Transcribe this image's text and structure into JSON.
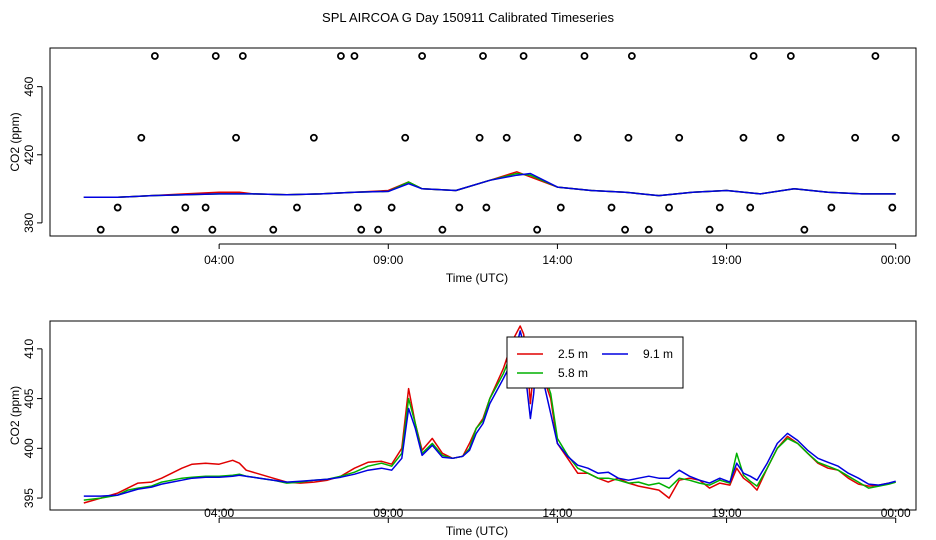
{
  "title": "SPL AIRCOA G  Day 150911  Calibrated Timeseries",
  "colors": {
    "s1": "#e00000",
    "s2": "#00b000",
    "s3": "#0000e0",
    "axis": "#000000"
  },
  "chart_data": [
    {
      "type": "line",
      "title": "SPL AIRCOA G  Day 150911  Calibrated Timeseries",
      "xlabel": "Time (UTC)",
      "ylabel": "CO2 (ppm)",
      "xlim": [
        -1.0,
        24.6
      ],
      "ylim": [
        372.3,
        482.7
      ],
      "xticks": [
        {
          "value": 4,
          "label": "04:00"
        },
        {
          "value": 9,
          "label": "09:00"
        },
        {
          "value": 14,
          "label": "14:00"
        },
        {
          "value": 19,
          "label": "19:00"
        },
        {
          "value": 24,
          "label": "00:00"
        }
      ],
      "yticks": [
        {
          "value": 380,
          "label": "380"
        },
        {
          "value": 420,
          "label": "420"
        },
        {
          "value": 460,
          "label": "460"
        }
      ],
      "series": [
        {
          "name": "2.5 m",
          "color": "#e00000",
          "x": [
            0,
            1,
            2,
            3,
            4,
            4.6,
            5,
            6,
            7,
            8,
            9,
            9.6,
            10,
            11,
            12,
            12.8,
            13.2,
            14,
            15,
            16,
            17,
            18,
            19,
            20,
            21,
            22,
            23,
            24
          ],
          "values": [
            395,
            395,
            396,
            397,
            398,
            398,
            397,
            396.5,
            397,
            398,
            399,
            404,
            400,
            399,
            405,
            410,
            407,
            401,
            399,
            398,
            396,
            398,
            399,
            397,
            400,
            398,
            397,
            397
          ]
        },
        {
          "name": "5.8 m",
          "color": "#00b000",
          "x": [
            0,
            1,
            2,
            3,
            4,
            5,
            6,
            7,
            8,
            9,
            9.6,
            10,
            11,
            12,
            12.8,
            13.2,
            14,
            15,
            16,
            17,
            18,
            19,
            20,
            21,
            22,
            23,
            24
          ],
          "values": [
            395,
            395,
            396,
            396.5,
            397,
            397,
            396.5,
            397,
            398,
            398.5,
            404,
            400,
            399,
            405,
            409,
            408,
            401,
            399,
            398,
            396,
            398,
            399,
            397,
            400,
            398,
            397,
            397
          ]
        },
        {
          "name": "9.1 m",
          "color": "#0000e0",
          "x": [
            0,
            1,
            2,
            3,
            4,
            5,
            6,
            7,
            8,
            9,
            9.6,
            10,
            11,
            12,
            12.8,
            13.2,
            14,
            15,
            16,
            17,
            18,
            19,
            20,
            21,
            22,
            23,
            24
          ],
          "values": [
            395,
            395,
            396,
            396.5,
            397,
            397,
            396.5,
            397,
            398,
            398.5,
            403,
            400,
            399,
            405,
            408,
            409,
            401,
            399,
            398,
            396,
            398,
            399,
            397,
            400,
            398,
            397,
            397
          ]
        },
        {
          "name": "flags",
          "style": "points",
          "color": "#000000",
          "x": [
            0.5,
            1.0,
            1.7,
            2.1,
            2.7,
            3.0,
            3.6,
            3.8,
            3.9,
            4.5,
            4.7,
            5.6,
            6.3,
            6.8,
            7.6,
            8.0,
            8.1,
            8.2,
            8.7,
            9.1,
            9.5,
            10.0,
            10.6,
            11.1,
            11.7,
            11.8,
            11.9,
            12.5,
            13.0,
            13.4,
            14.1,
            14.6,
            14.8,
            15.6,
            16.0,
            16.1,
            16.2,
            16.7,
            17.3,
            17.6,
            18.5,
            18.8,
            19.5,
            19.7,
            19.8,
            20.6,
            20.9,
            21.3,
            22.1,
            22.8,
            23.4,
            23.9,
            24.0
          ],
          "values": [
            376,
            389,
            430,
            478,
            376,
            389,
            389,
            376,
            478,
            430,
            478,
            376,
            389,
            430,
            478,
            478,
            389,
            376,
            376,
            389,
            430,
            478,
            376,
            389,
            430,
            478,
            389,
            430,
            478,
            376,
            389,
            430,
            478,
            389,
            376,
            430,
            478,
            376,
            389,
            430,
            376,
            389,
            430,
            389,
            478,
            430,
            478,
            376,
            389,
            430,
            478,
            389,
            430
          ]
        }
      ]
    },
    {
      "type": "line",
      "title": "",
      "xlabel": "Time (UTC)",
      "ylabel": "CO2 (ppm)",
      "xlim": [
        -1.0,
        24.6
      ],
      "ylim": [
        393.8,
        412.8
      ],
      "legend": {
        "position": "top-center",
        "entries": [
          "2.5 m",
          "5.8 m",
          "9.1 m"
        ]
      },
      "xticks": [
        {
          "value": 4,
          "label": "04:00"
        },
        {
          "value": 9,
          "label": "09:00"
        },
        {
          "value": 14,
          "label": "14:00"
        },
        {
          "value": 19,
          "label": "19:00"
        },
        {
          "value": 24,
          "label": "00:00"
        }
      ],
      "yticks": [
        {
          "value": 395,
          "label": "395"
        },
        {
          "value": 400,
          "label": "400"
        },
        {
          "value": 405,
          "label": "405"
        },
        {
          "value": 410,
          "label": "410"
        }
      ],
      "series": [
        {
          "name": "2.5 m",
          "color": "#e00000",
          "x": [
            0,
            0.5,
            1,
            1.3,
            1.6,
            2.0,
            2.3,
            2.6,
            2.9,
            3.2,
            3.6,
            4.0,
            4.4,
            4.6,
            4.8,
            5.2,
            5.6,
            6.0,
            6.4,
            6.8,
            7.2,
            7.6,
            8.0,
            8.4,
            8.8,
            9.1,
            9.4,
            9.6,
            9.8,
            10.0,
            10.3,
            10.6,
            10.9,
            11.2,
            11.4,
            11.6,
            11.8,
            12.0,
            12.4,
            12.7,
            12.9,
            13.0,
            13.1,
            13.2,
            13.3,
            13.4,
            13.6,
            13.8,
            14.0,
            14.3,
            14.6,
            14.9,
            15.2,
            15.5,
            15.8,
            16.1,
            16.4,
            16.7,
            17.0,
            17.3,
            17.6,
            17.9,
            18.2,
            18.5,
            18.8,
            19.1,
            19.3,
            19.5,
            19.7,
            19.9,
            20.2,
            20.5,
            20.8,
            21.1,
            21.4,
            21.7,
            22.0,
            22.3,
            22.6,
            22.9,
            23.2,
            23.5,
            23.8,
            24.0
          ],
          "values": [
            394.5,
            395.0,
            395.5,
            396.0,
            396.5,
            396.6,
            397.0,
            397.5,
            398.0,
            398.4,
            398.5,
            398.4,
            398.8,
            398.5,
            397.8,
            397.4,
            397.0,
            396.6,
            396.5,
            396.6,
            396.8,
            397.2,
            398.0,
            398.6,
            398.7,
            398.4,
            400.0,
            406.0,
            402.5,
            399.8,
            401.0,
            399.5,
            399.0,
            399.2,
            400.5,
            402.0,
            403.0,
            405.0,
            408.0,
            411.0,
            412.3,
            411.5,
            409.0,
            404.5,
            408.0,
            410.5,
            407.0,
            405.0,
            400.5,
            399.0,
            397.5,
            397.5,
            397.0,
            396.6,
            397.0,
            396.5,
            396.2,
            396.0,
            395.8,
            395.0,
            396.8,
            397.0,
            396.8,
            396.0,
            396.5,
            396.3,
            398.0,
            397.0,
            396.5,
            395.8,
            398.0,
            400.0,
            401.2,
            400.5,
            399.5,
            398.5,
            398.0,
            397.8,
            397.0,
            396.4,
            396.2,
            396.3,
            396.5,
            396.6
          ]
        },
        {
          "name": "5.8 m",
          "color": "#00b000",
          "x": [
            0,
            0.5,
            1,
            1.3,
            1.6,
            2.0,
            2.3,
            2.6,
            2.9,
            3.2,
            3.6,
            4.0,
            4.4,
            4.6,
            4.8,
            5.2,
            5.6,
            6.0,
            6.4,
            6.8,
            7.2,
            7.6,
            8.0,
            8.4,
            8.8,
            9.1,
            9.4,
            9.6,
            9.8,
            10.0,
            10.3,
            10.6,
            10.9,
            11.2,
            11.4,
            11.6,
            11.8,
            12.0,
            12.4,
            12.7,
            12.9,
            13.0,
            13.1,
            13.2,
            13.3,
            13.4,
            13.6,
            13.8,
            14.0,
            14.3,
            14.6,
            14.9,
            15.2,
            15.5,
            15.8,
            16.1,
            16.4,
            16.7,
            17.0,
            17.3,
            17.6,
            17.9,
            18.2,
            18.5,
            18.8,
            19.1,
            19.3,
            19.5,
            19.7,
            19.9,
            20.2,
            20.5,
            20.8,
            21.1,
            21.4,
            21.7,
            22.0,
            22.3,
            22.6,
            22.9,
            23.2,
            23.5,
            23.8,
            24.0
          ],
          "values": [
            394.8,
            395.0,
            395.3,
            395.8,
            396.0,
            396.2,
            396.6,
            396.8,
            397.0,
            397.1,
            397.2,
            397.2,
            397.3,
            397.4,
            397.2,
            397.0,
            396.8,
            396.5,
            396.6,
            396.8,
            396.9,
            397.2,
            397.6,
            398.2,
            398.5,
            398.2,
            399.5,
            405.0,
            402.5,
            399.5,
            400.5,
            399.3,
            399.0,
            399.2,
            400.0,
            402.0,
            402.8,
            405.0,
            407.5,
            410.0,
            411.0,
            411.2,
            410.5,
            409.0,
            406.5,
            410.0,
            407.5,
            405.5,
            401.0,
            399.3,
            398.0,
            397.5,
            397.0,
            397.0,
            396.8,
            396.5,
            396.6,
            396.3,
            396.5,
            396.0,
            397.0,
            396.8,
            396.5,
            396.3,
            396.8,
            396.5,
            399.5,
            397.3,
            396.7,
            396.2,
            398.0,
            400.0,
            401.0,
            400.5,
            399.5,
            398.6,
            398.2,
            397.8,
            397.2,
            396.6,
            396.0,
            396.2,
            396.4,
            396.6
          ]
        },
        {
          "name": "9.1 m",
          "color": "#0000e0",
          "x": [
            0,
            0.5,
            1,
            1.3,
            1.6,
            2.0,
            2.3,
            2.6,
            2.9,
            3.2,
            3.6,
            4.0,
            4.4,
            4.6,
            4.8,
            5.2,
            5.6,
            6.0,
            6.4,
            6.8,
            7.2,
            7.6,
            8.0,
            8.4,
            8.8,
            9.1,
            9.4,
            9.6,
            9.8,
            10.0,
            10.3,
            10.6,
            10.9,
            11.2,
            11.4,
            11.6,
            11.8,
            12.0,
            12.4,
            12.7,
            12.9,
            13.0,
            13.1,
            13.2,
            13.3,
            13.4,
            13.6,
            13.8,
            14.0,
            14.3,
            14.6,
            14.9,
            15.2,
            15.5,
            15.8,
            16.1,
            16.4,
            16.7,
            17.0,
            17.3,
            17.6,
            17.9,
            18.2,
            18.5,
            18.8,
            19.1,
            19.3,
            19.5,
            19.7,
            19.9,
            20.2,
            20.5,
            20.8,
            21.1,
            21.4,
            21.7,
            22.0,
            22.3,
            22.6,
            22.9,
            23.2,
            23.5,
            23.8,
            24.0
          ],
          "values": [
            395.2,
            395.2,
            395.3,
            395.6,
            395.9,
            396.1,
            396.4,
            396.6,
            396.8,
            397.0,
            397.1,
            397.1,
            397.2,
            397.3,
            397.2,
            397.0,
            396.8,
            396.6,
            396.7,
            396.8,
            396.9,
            397.1,
            397.4,
            397.8,
            398.0,
            397.8,
            399.0,
            404.0,
            402.0,
            399.3,
            400.3,
            399.1,
            399.0,
            399.2,
            399.8,
            401.5,
            402.5,
            404.5,
            407.0,
            409.0,
            411.8,
            410.5,
            406.0,
            403.0,
            405.5,
            410.2,
            406.5,
            403.5,
            400.5,
            399.2,
            398.3,
            398.0,
            397.5,
            397.6,
            397.0,
            396.8,
            397.0,
            397.2,
            397.0,
            397.0,
            397.8,
            397.2,
            396.8,
            396.5,
            397.0,
            396.6,
            398.5,
            397.5,
            397.2,
            396.8,
            398.5,
            400.5,
            401.5,
            400.8,
            399.8,
            399.0,
            398.6,
            398.2,
            397.5,
            397.0,
            396.4,
            396.3,
            396.5,
            396.7
          ]
        }
      ]
    }
  ]
}
